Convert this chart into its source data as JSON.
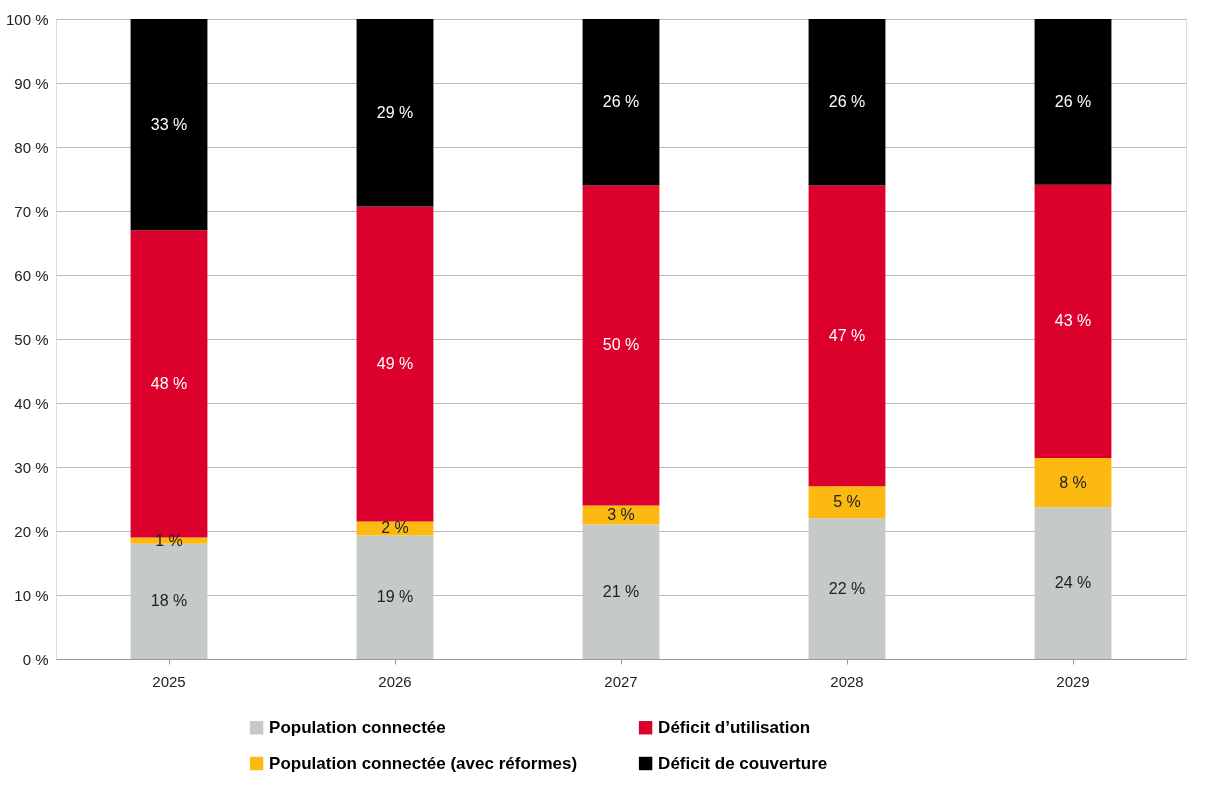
{
  "chart_data": {
    "type": "bar",
    "stacked": true,
    "categories": [
      "2025",
      "2026",
      "2027",
      "2028",
      "2029"
    ],
    "series": [
      {
        "name": "Population connectée",
        "color": "#c5c9c8",
        "values": [
          18,
          19.3,
          21,
          22,
          23.7
        ],
        "value_labels": [
          "18 %",
          "19 %",
          "21 %",
          "22 %",
          "24 %"
        ]
      },
      {
        "name": "Population connectée (avec réformes)",
        "color": "#fbb912",
        "values": [
          1,
          2.2,
          3,
          5,
          7.7
        ],
        "value_labels": [
          "1 %",
          "2 %",
          "3 %",
          "5 %",
          "8 %"
        ]
      },
      {
        "name": "Déficit d’utilisation",
        "color": "#dc002d",
        "values": [
          48,
          49.2,
          50,
          47,
          42.7
        ],
        "value_labels": [
          "48 %",
          "49 %",
          "50 %",
          "47 %",
          "43 %"
        ]
      },
      {
        "name": "Déficit de couverture",
        "color": "#000000",
        "values": [
          33,
          29.3,
          26,
          26,
          25.9
        ],
        "value_labels": [
          "33 %",
          "29 %",
          "26 %",
          "26 %",
          "26 %"
        ]
      }
    ],
    "ylim": [
      0,
      100
    ],
    "yticks": [
      {
        "value": 0,
        "label": "0 %"
      },
      {
        "value": 10,
        "label": "10 %"
      },
      {
        "value": 20,
        "label": "20 %"
      },
      {
        "value": 30,
        "label": "30 %"
      },
      {
        "value": 40,
        "label": "40 %"
      },
      {
        "value": 50,
        "label": "50 %"
      },
      {
        "value": 60,
        "label": "60 %"
      },
      {
        "value": 70,
        "label": "70 %"
      },
      {
        "value": 80,
        "label": "80 %"
      },
      {
        "value": 90,
        "label": "90 %"
      },
      {
        "value": 100,
        "label": "100 %"
      }
    ],
    "grid": "y",
    "legend": "bottom"
  }
}
